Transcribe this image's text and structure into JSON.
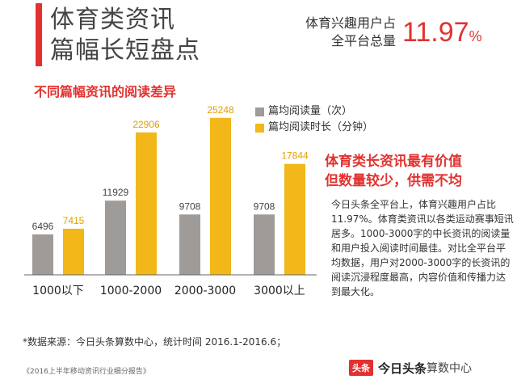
{
  "header": {
    "title_line1": "体育类资讯",
    "title_line2": "篇幅长短盘点",
    "stat_label_line1": "体育兴趣用户占",
    "stat_label_line2": "全平台总量",
    "stat_value": "11.97",
    "stat_unit": "%"
  },
  "colors": {
    "accent": "#e2322f",
    "series_read": "#9e9b98",
    "series_time": "#f2b718"
  },
  "chart_data": {
    "type": "bar",
    "title": "不同篇幅资讯的阅读差异",
    "categories": [
      "1000以下",
      "1000-2000",
      "2000-3000",
      "3000以上"
    ],
    "series": [
      {
        "name": "篇均阅读量（次）",
        "values": [
          6496,
          11929,
          9708,
          9708
        ]
      },
      {
        "name": "篇均阅读时长（分钟）",
        "values": [
          7415,
          22906,
          25248,
          17844
        ]
      }
    ],
    "ylim": [
      0,
      26000
    ],
    "grid": false,
    "legend": "top-right"
  },
  "side": {
    "heading_line1": "体育类长资讯最有价值",
    "heading_line2": "但数量较少，供需不均",
    "body": "今日头条全平台上，体育兴趣用户占比11.97%。体育类资讯以各类运动赛事短讯居多。1000-3000字的中长资讯的阅读量和用户投入阅读时间最佳。对比全平台平均数据，用户对2000-3000字的长资讯的阅读沉浸程度最高，内容价值和传播力达到最大化。"
  },
  "footer": {
    "source": "*数据来源：今日头条算数中心，统计时间 2016.1-2016.6；",
    "report": "《2016上半年移动资讯行业细分报告》",
    "brand_logo": "头条",
    "brand_name": "今日头条",
    "brand_suffix": "算数中心"
  }
}
